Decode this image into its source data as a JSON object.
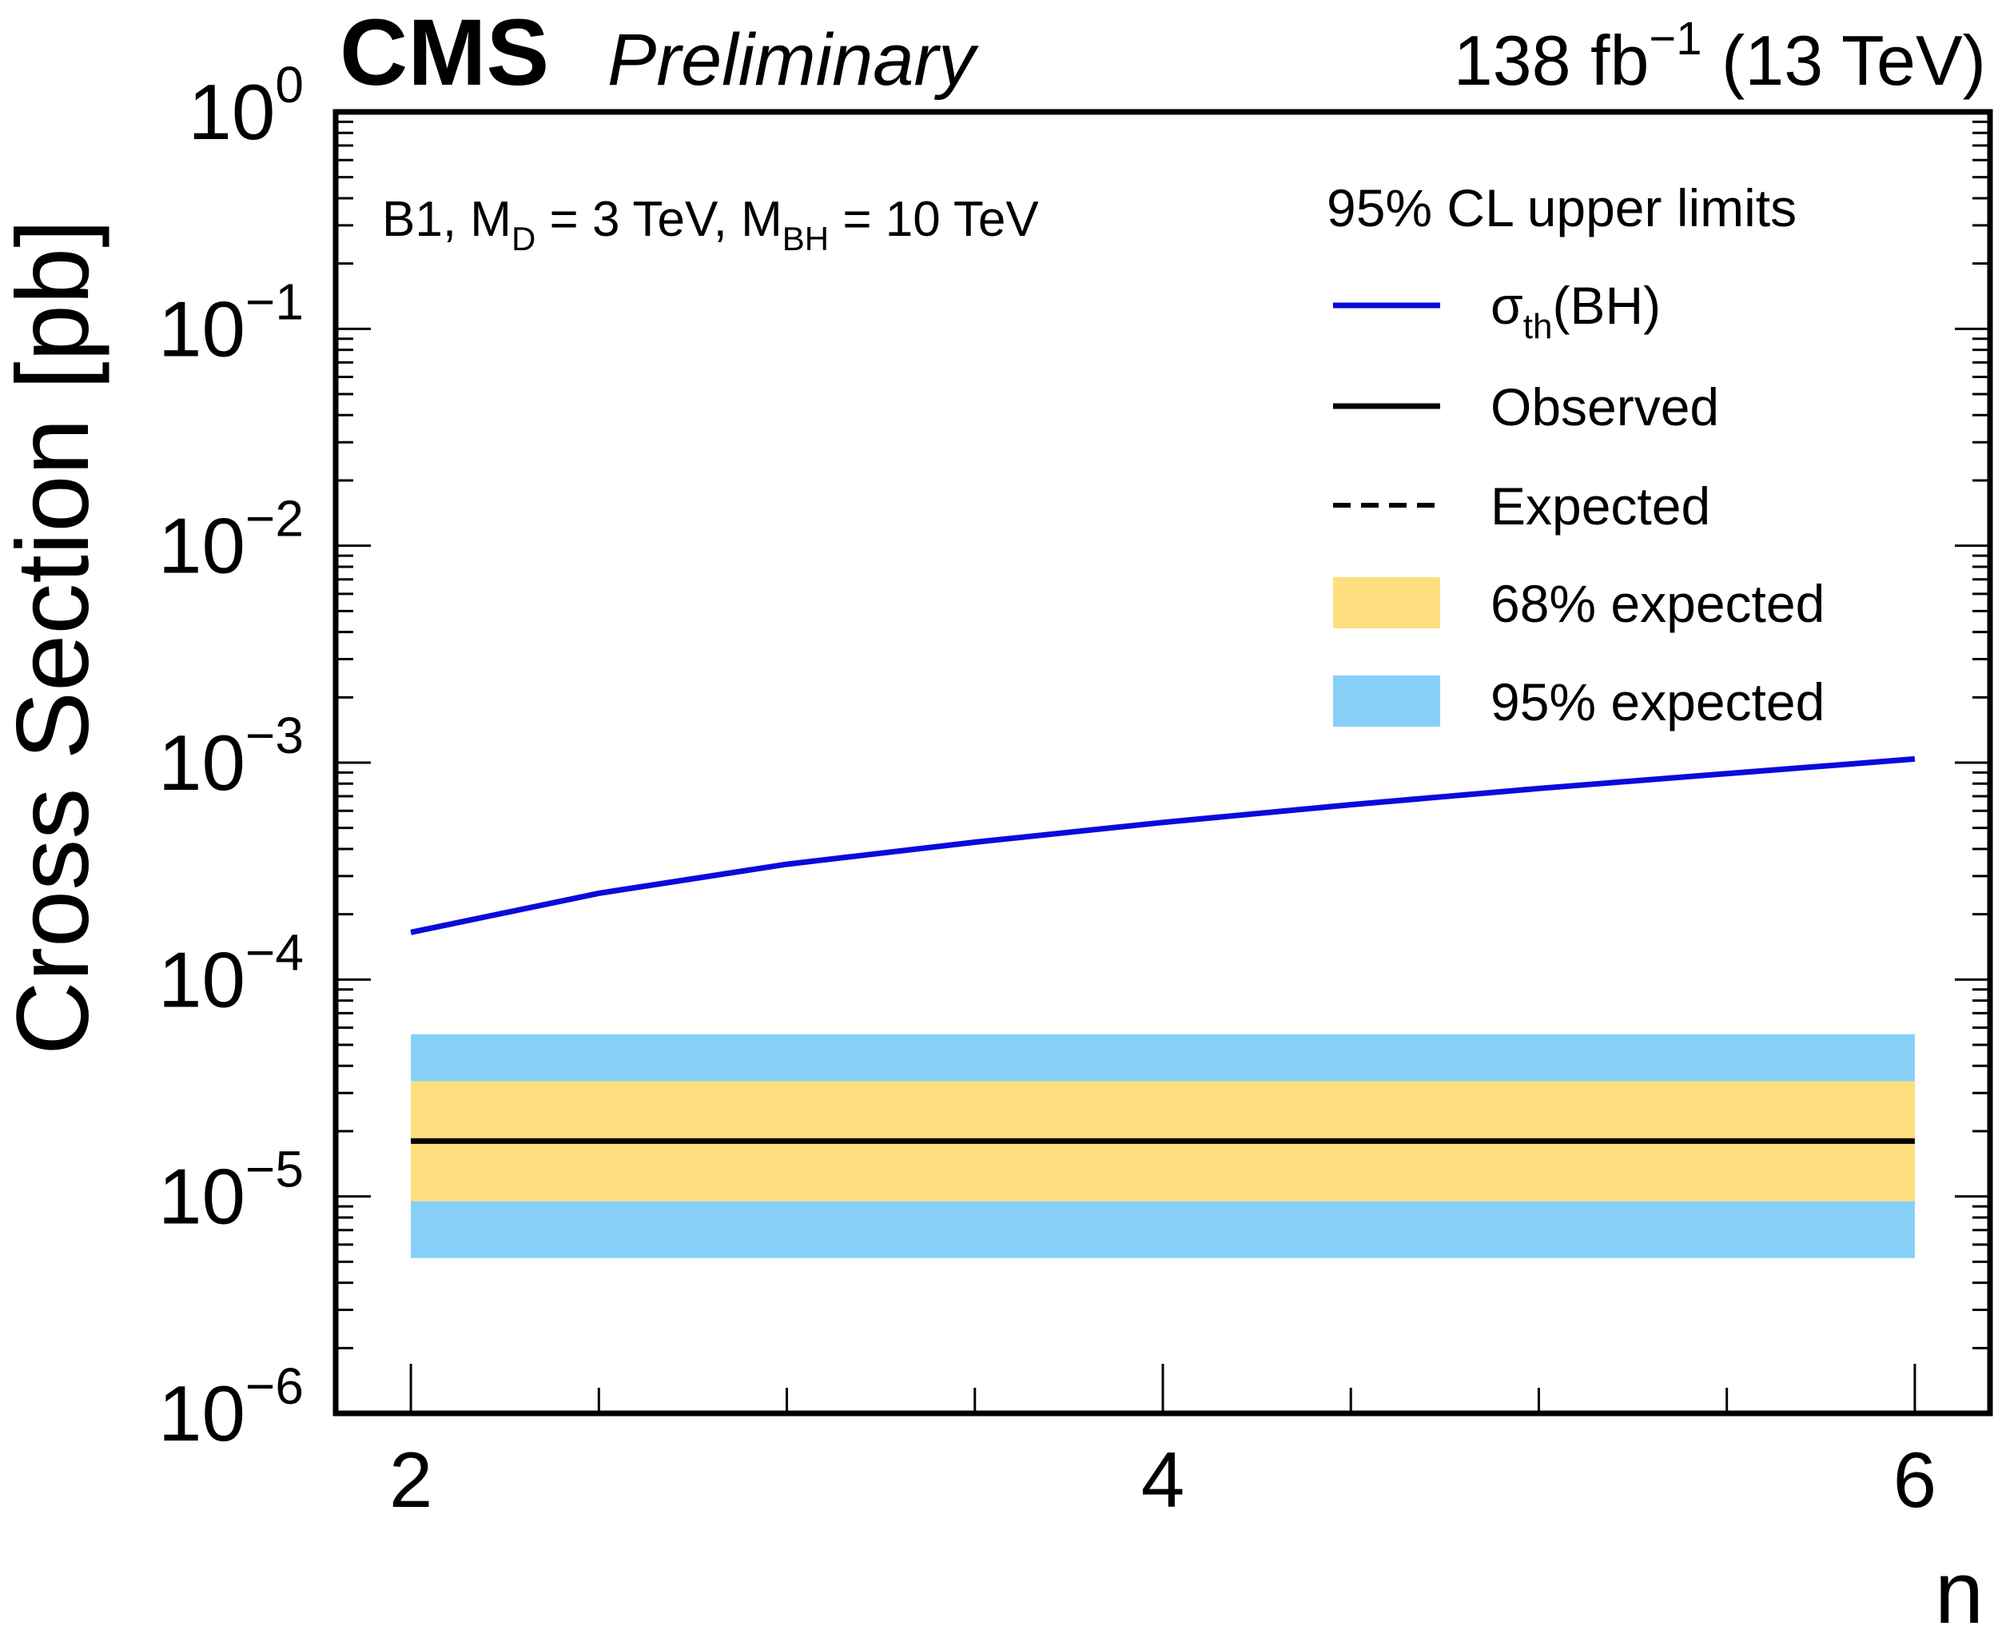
{
  "header": {
    "cms_label": "CMS",
    "preliminary_label": "Preliminary",
    "lumi_value": "138 fb",
    "lumi_exponent": "−1",
    "energy": "(13 TeV)"
  },
  "annotation": {
    "prefix": "B1, M",
    "md_sub": "D",
    "md_value": " = 3 TeV, M",
    "mbh_sub": "BH",
    "mbh_value": " = 10 TeV"
  },
  "legend": {
    "title": "95% CL upper limits",
    "theory_symbol": "σ",
    "theory_sub": "th",
    "theory_rest": "(BH)",
    "observed": "Observed",
    "expected": "Expected",
    "band68": "68% expected",
    "band95": "95% expected"
  },
  "colors": {
    "theory": "#0a0adc",
    "band68": "#fddf7f",
    "band95": "#86d0f8",
    "observed": "#000000",
    "expected": "#000000"
  },
  "chart_data": {
    "type": "line",
    "title": "CMS Preliminary",
    "xlabel": "n",
    "ylabel": "Cross Section [pb]",
    "xlim": [
      1.8,
      6.2
    ],
    "ylog": true,
    "ylim": [
      1e-06,
      1
    ],
    "x_ticks": [
      {
        "value": 2,
        "label": "2"
      },
      {
        "value": 4,
        "label": "4"
      },
      {
        "value": 6,
        "label": "6"
      }
    ],
    "y_ticks": [
      {
        "exp": 0,
        "base": "10",
        "sup": "0"
      },
      {
        "exp": -1,
        "base": "10",
        "sup": "−1"
      },
      {
        "exp": -2,
        "base": "10",
        "sup": "−2"
      },
      {
        "exp": -3,
        "base": "10",
        "sup": "−3"
      },
      {
        "exp": -4,
        "base": "10",
        "sup": "−4"
      },
      {
        "exp": -5,
        "base": "10",
        "sup": "−5"
      },
      {
        "exp": -6,
        "base": "10",
        "sup": "−6"
      }
    ],
    "series": [
      {
        "name": "σth(BH)",
        "style": "solid-blue",
        "x": [
          2,
          2.5,
          3,
          3.5,
          4,
          4.5,
          5,
          5.5,
          6
        ],
        "y": [
          0.000165,
          0.00025,
          0.00034,
          0.00043,
          0.00053,
          0.00064,
          0.00076,
          0.00089,
          0.00104
        ]
      },
      {
        "name": "Observed",
        "style": "solid-black",
        "x": [
          2,
          6
        ],
        "y": [
          1.8e-05,
          1.8e-05
        ]
      },
      {
        "name": "Expected",
        "style": "dashed-black",
        "x": [
          2,
          6
        ],
        "y": [
          1.8e-05,
          1.8e-05
        ]
      }
    ],
    "bands": [
      {
        "name": "95% expected",
        "x": [
          2,
          6
        ],
        "low": 5.2e-06,
        "high": 5.6e-05
      },
      {
        "name": "68% expected",
        "x": [
          2,
          6
        ],
        "low": 9.5e-06,
        "high": 3.4e-05
      }
    ]
  }
}
